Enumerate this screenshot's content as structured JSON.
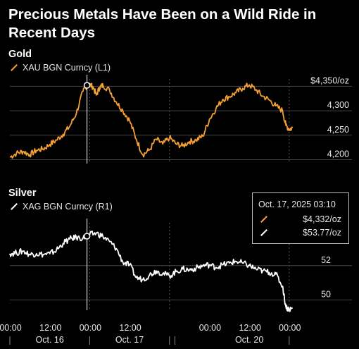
{
  "title": "Precious Metals Have Been on a Wild Ride in Recent Days",
  "tooltip": {
    "date": "Oct. 17, 2025 03:10",
    "gold_value": "$4,332/oz",
    "silver_value": "$53.77/oz"
  },
  "colors": {
    "gold": "#f5a033",
    "silver": "#ffffff",
    "grid": "#444444",
    "tick_text": "#e6e6e6"
  },
  "x_axis": {
    "tick_labels": [
      "00:00",
      "12:00",
      "00:00",
      "12:00",
      "00:00",
      "12:00",
      "00:00"
    ],
    "tick_times": [
      0,
      12,
      24,
      36,
      60,
      72,
      84
    ],
    "date_labels": [
      "Oct. 16",
      "Oct. 17",
      "Oct. 20"
    ],
    "date_centers": [
      12,
      36,
      72
    ],
    "separator_times": [
      0,
      24,
      48,
      84
    ]
  },
  "chart_data": [
    {
      "type": "line",
      "title": "Gold",
      "series": [
        {
          "name": "XAU BGN Curncy (L1)",
          "color": "#f5a033"
        }
      ],
      "x": [
        0,
        2,
        4,
        6,
        8,
        10,
        12,
        14,
        16,
        18,
        20,
        22,
        23.5,
        25,
        26,
        27,
        28,
        30,
        32,
        34,
        36,
        38,
        40,
        42,
        44,
        46,
        48,
        50,
        52,
        54,
        56,
        58,
        60,
        62,
        64,
        66,
        68,
        70,
        72,
        74,
        76,
        78,
        80,
        82,
        83,
        84,
        85
      ],
      "y": [
        4205,
        4213,
        4217,
        4210,
        4219,
        4222,
        4231,
        4240,
        4252,
        4268,
        4295,
        4340,
        4355,
        4349,
        4332,
        4348,
        4352,
        4342,
        4318,
        4300,
        4280,
        4242,
        4210,
        4220,
        4242,
        4232,
        4245,
        4232,
        4228,
        4237,
        4240,
        4248,
        4282,
        4305,
        4323,
        4329,
        4337,
        4346,
        4353,
        4343,
        4330,
        4322,
        4310,
        4300,
        4270,
        4262,
        4265
      ],
      "ylim": [
        4192,
        4365
      ],
      "y_ticks": [
        4350,
        4300,
        4250,
        4200
      ],
      "y_tick_labels": [
        "$4,350/oz",
        "4,300",
        "4,250",
        "4,200"
      ],
      "grid": true
    },
    {
      "type": "line",
      "title": "Silver",
      "series": [
        {
          "name": "XAG BGN Curncy (R1)",
          "color": "#ffffff"
        }
      ],
      "x": [
        0,
        2,
        4,
        6,
        8,
        10,
        12,
        14,
        16,
        18,
        20,
        22,
        24,
        26,
        28,
        30,
        32,
        34,
        36,
        38,
        40,
        42,
        44,
        46,
        48,
        50,
        52,
        54,
        56,
        58,
        60,
        62,
        64,
        66,
        68,
        70,
        72,
        74,
        76,
        78,
        80,
        82,
        83,
        84,
        85
      ],
      "y": [
        52.7,
        52.75,
        52.85,
        52.65,
        52.7,
        52.65,
        52.7,
        52.9,
        53.3,
        53.55,
        53.65,
        53.6,
        53.8,
        53.9,
        53.7,
        53.4,
        53.0,
        52.2,
        52.05,
        51.3,
        51.2,
        51.45,
        51.7,
        51.55,
        51.4,
        51.65,
        51.8,
        51.75,
        51.85,
        52.0,
        52.05,
        51.9,
        52.05,
        52.15,
        52.25,
        52.15,
        52.0,
        51.8,
        51.7,
        51.6,
        51.5,
        50.8,
        49.6,
        49.45,
        49.5
      ],
      "ylim": [
        49.4,
        54.5
      ],
      "y_ticks": [
        52,
        50
      ],
      "y_tick_labels": [
        "52",
        "50"
      ],
      "grid": true
    }
  ]
}
